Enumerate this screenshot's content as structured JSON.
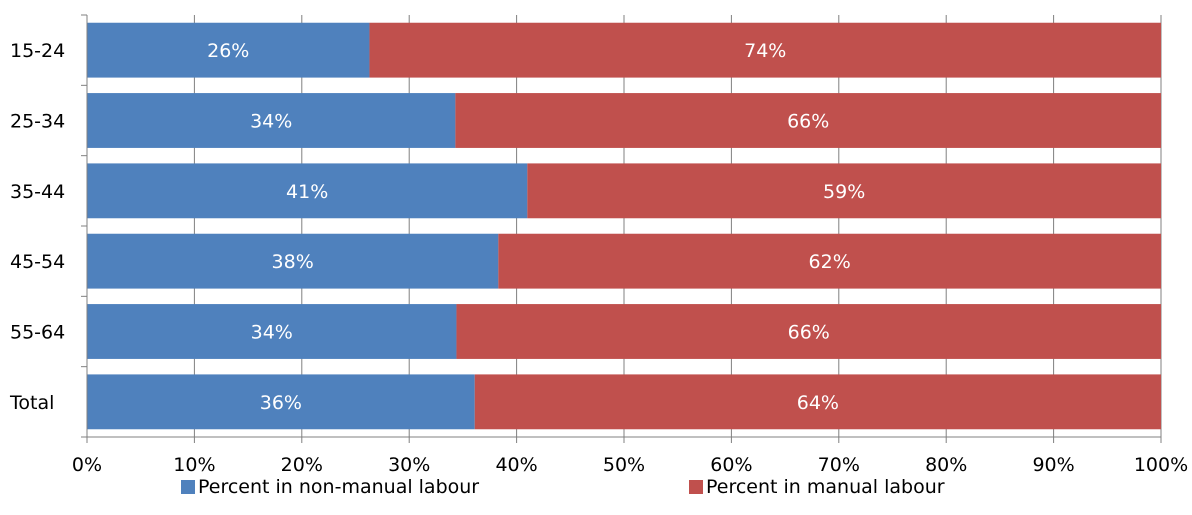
{
  "chart_data": {
    "type": "bar",
    "orientation": "horizontal",
    "stacked": true,
    "categories": [
      "15-24",
      "25-34",
      "35-44",
      "45-54",
      "55-64",
      "Total"
    ],
    "series": [
      {
        "name": "Percent in non-manual labour",
        "color": "#4f81bd",
        "values": [
          26.3,
          34.3,
          41.0,
          38.3,
          34.4,
          36.1
        ],
        "labels": [
          "26%",
          "34%",
          "41%",
          "38%",
          "34%",
          "36%"
        ]
      },
      {
        "name": "Percent in manual labour",
        "color": "#c0504d",
        "values": [
          73.7,
          65.7,
          59.0,
          61.7,
          65.6,
          63.9
        ],
        "labels": [
          "74%",
          "66%",
          "59%",
          "62%",
          "66%",
          "64%"
        ]
      }
    ],
    "xlim": [
      0,
      100
    ],
    "xticks": [
      "0%",
      "10%",
      "20%",
      "30%",
      "40%",
      "50%",
      "60%",
      "70%",
      "80%",
      "90%",
      "100%"
    ],
    "grid": "vertical",
    "legend_position": "bottom",
    "title": "",
    "xlabel": "",
    "ylabel": ""
  }
}
